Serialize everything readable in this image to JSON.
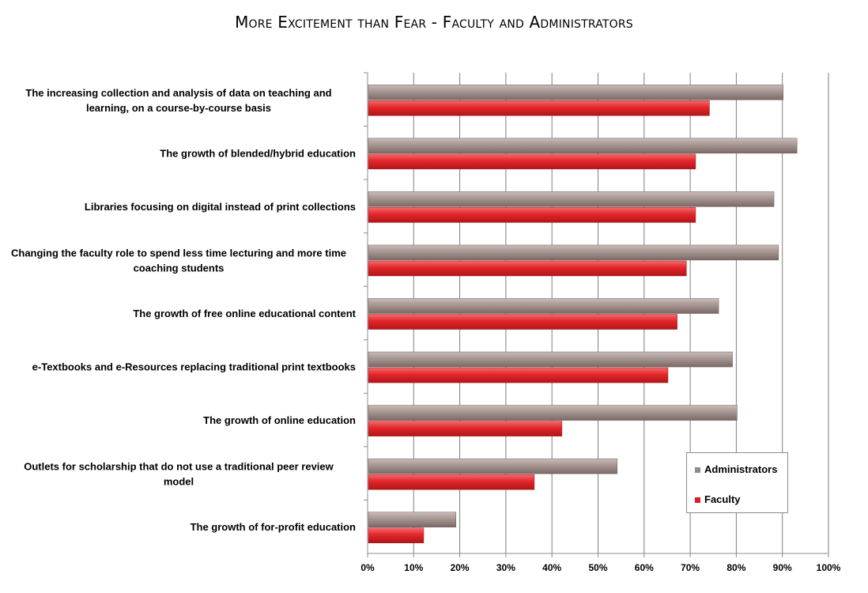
{
  "title": "More Excitement than Fear - Faculty and Administrators",
  "colors": {
    "administrators": "#9a8883",
    "faculty": "#e01e22",
    "grid": "#7f7f7f"
  },
  "chart_data": {
    "type": "bar",
    "orientation": "horizontal",
    "title": "More Excitement than Fear - Faculty and Administrators",
    "xlabel": "",
    "ylabel": "",
    "xlim": [
      0,
      100
    ],
    "x_ticks": [
      "0%",
      "10%",
      "20%",
      "30%",
      "40%",
      "50%",
      "60%",
      "70%",
      "80%",
      "90%",
      "100%"
    ],
    "grid": true,
    "legend_position": "bottom-right",
    "categories": [
      "The increasing collection and analysis of data on teaching and learning, on a course-by-course basis",
      "The growth of blended/hybrid education",
      "Libraries focusing on digital instead of print collections",
      "Changing the faculty role to spend less time lecturing and more time coaching students",
      "The growth of free online educational content",
      "e-Textbooks and e-Resources replacing traditional print textbooks",
      "The growth of online education",
      "Outlets for scholarship that do not use a traditional peer review model",
      "The growth of for-profit education"
    ],
    "series": [
      {
        "name": "Administrators",
        "values": [
          90,
          93,
          88,
          89,
          76,
          79,
          80,
          54,
          19
        ]
      },
      {
        "name": "Faculty",
        "values": [
          74,
          71,
          71,
          69,
          67,
          65,
          42,
          36,
          12
        ]
      }
    ]
  }
}
